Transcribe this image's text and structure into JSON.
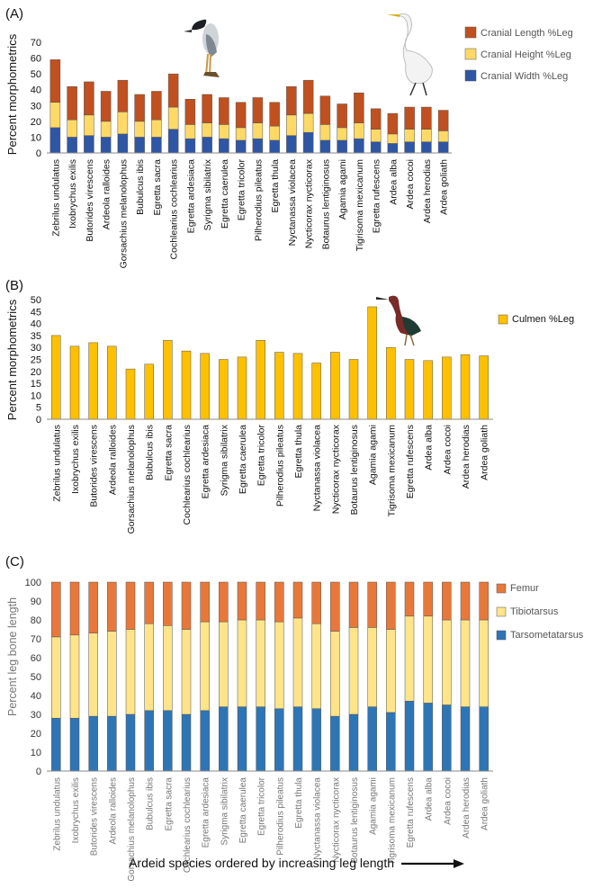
{
  "species": [
    "Zebrilus undulatus",
    "Ixobrychus exilis",
    "Butorides virescens",
    "Ardeola ralloides",
    "Gorsachius melanolophus",
    "Bubulcus ibis",
    "Egretta sacra",
    "Cochlearius cochlearius",
    "Egretta ardesiaca",
    "Syrigma sibilatrix",
    "Egretta caerulea",
    "Egretta tricolor",
    "Pilherodius pileatus",
    "Egretta thula",
    "Nyctanassa  violacea",
    "Nycticorax nycticorax",
    "Botaurus lentiginosus",
    "Agamia agami",
    "Tigrisoma mexicanum",
    "Egretta rufescens",
    "Ardea alba",
    "Ardea cocoi",
    "Ardea herodias",
    "Ardea goliath"
  ],
  "colors": {
    "cranial_length": "#c0501f",
    "cranial_height": "#ffd966",
    "cranial_width": "#2f56a4",
    "culmen": "#ffc000",
    "femur": "#e8783a",
    "tibiotarsus": "#ffe48a",
    "tarsometatarsus": "#2e75b6",
    "axis": "#888888"
  },
  "chart_data": [
    {
      "panel_label": "(A)",
      "type": "bar",
      "stacked": true,
      "ylabel": "Percent morphometrics",
      "ylim": [
        0,
        70
      ],
      "yticks": [
        "0",
        "10",
        "20",
        "30",
        "40",
        "50",
        "60",
        "70"
      ],
      "legend_position": "top-right",
      "series": [
        {
          "name": "Cranial Width %Leg",
          "color_key": "cranial_width",
          "values": [
            16,
            10,
            11,
            10,
            12,
            10,
            10,
            15,
            9,
            10,
            9,
            8,
            9,
            8,
            11,
            13,
            8,
            8,
            9,
            7,
            6,
            7,
            7,
            7
          ]
        },
        {
          "name": "Cranial Height %Leg",
          "color_key": "cranial_height",
          "values": [
            16,
            11,
            13,
            10,
            14,
            10,
            11,
            14,
            9,
            9,
            9,
            8,
            10,
            9,
            13,
            12,
            10,
            8,
            10,
            8,
            6,
            8,
            8,
            7
          ]
        },
        {
          "name": "Cranial Length %Leg",
          "color_key": "cranial_length",
          "values": [
            27,
            21,
            21,
            19,
            20,
            17,
            18,
            21,
            16,
            18,
            17,
            16,
            16,
            15,
            18,
            21,
            18,
            15,
            19,
            13,
            13,
            14,
            14,
            13
          ]
        }
      ],
      "legend_order": [
        "Cranial Length %Leg",
        "Cranial Height %Leg",
        "Cranial Width %Leg"
      ]
    },
    {
      "panel_label": "(B)",
      "type": "bar",
      "stacked": false,
      "ylabel": "Percent morphometrics",
      "ylim": [
        0,
        50
      ],
      "yticks": [
        "0",
        "5",
        "10",
        "15",
        "20",
        "25",
        "30",
        "35",
        "40",
        "45",
        "50"
      ],
      "legend_position": "right",
      "series": [
        {
          "name": "Culmen %Leg",
          "color_key": "culmen",
          "values": [
            35,
            30.5,
            32,
            30.5,
            21,
            23,
            33,
            28.5,
            27.5,
            25,
            26,
            33,
            28,
            27.5,
            23.5,
            28,
            25,
            47,
            30,
            25,
            24.5,
            26,
            27,
            26.5
          ]
        }
      ],
      "legend_order": [
        "Culmen %Leg"
      ]
    },
    {
      "panel_label": "(C)",
      "type": "bar",
      "stacked": true,
      "ylabel": "Percent leg bone length",
      "ylim": [
        0,
        100
      ],
      "yticks": [
        "0",
        "10",
        "20",
        "30",
        "40",
        "50",
        "60",
        "70",
        "80",
        "90",
        "100"
      ],
      "legend_position": "top-right",
      "xlabel": "Ardeid species ordered by increasing leg length",
      "series": [
        {
          "name": "Tarsometatarsus",
          "color_key": "tarsometatarsus",
          "values": [
            28,
            28,
            29,
            29,
            30,
            32,
            32,
            30,
            32,
            34,
            34,
            34,
            33,
            34,
            33,
            29,
            30,
            34,
            31,
            37,
            36,
            35,
            34,
            34
          ]
        },
        {
          "name": "Tibiotarsus",
          "color_key": "tibiotarsus",
          "values": [
            43,
            44,
            44,
            45,
            45,
            46,
            45,
            45,
            47,
            45,
            46,
            46,
            46,
            47,
            45,
            45,
            46,
            42,
            44,
            45,
            46,
            45,
            46,
            46
          ]
        },
        {
          "name": "Femur",
          "color_key": "femur",
          "values": [
            29,
            28,
            27,
            26,
            25,
            22,
            23,
            25,
            21,
            21,
            20,
            20,
            21,
            19,
            22,
            26,
            24,
            24,
            25,
            18,
            18,
            20,
            20,
            20
          ]
        }
      ],
      "legend_order": [
        "Femur",
        "Tibiotarsus",
        "Tarsometatarsus"
      ]
    }
  ]
}
